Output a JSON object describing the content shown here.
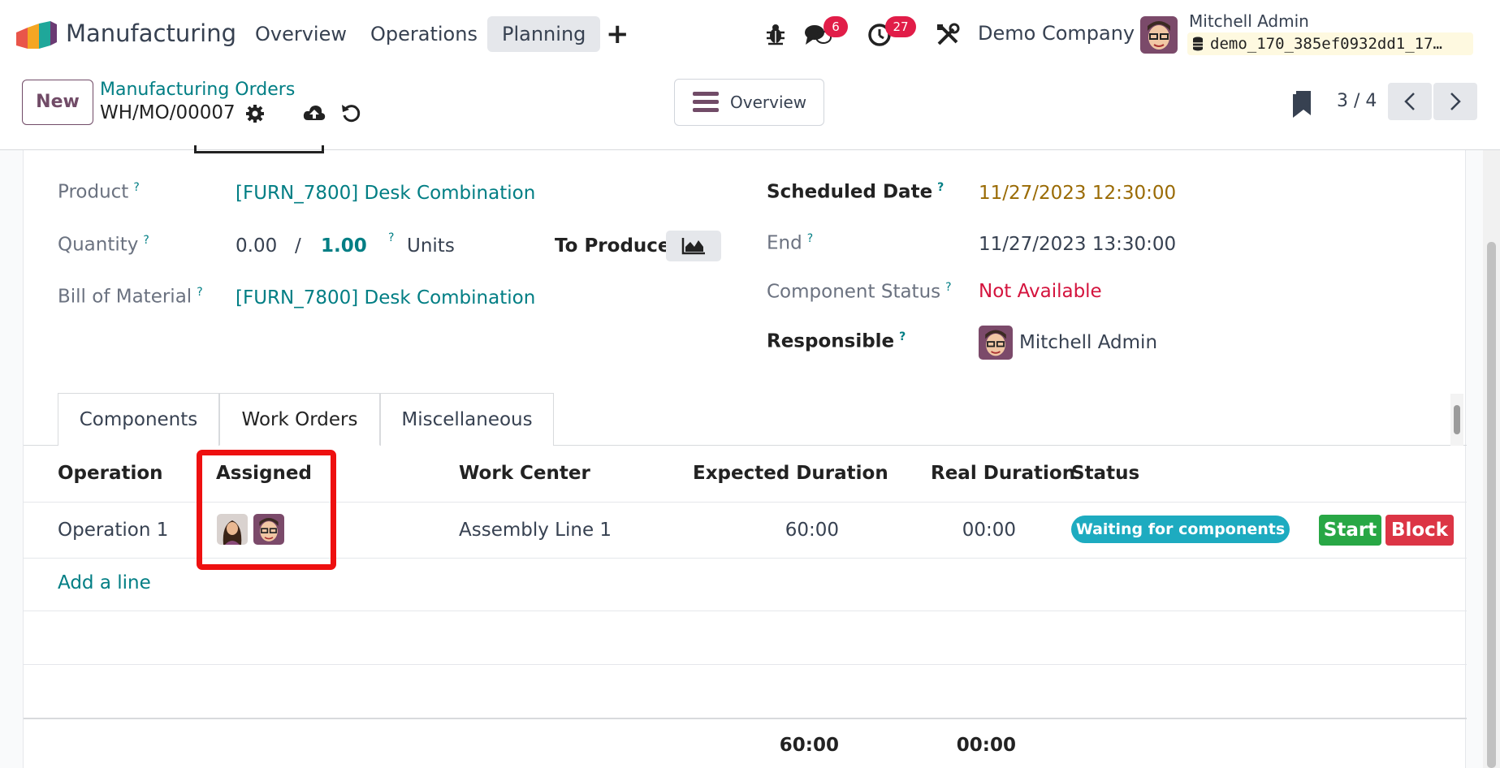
{
  "navbar": {
    "app_name": "Manufacturing",
    "menus": [
      {
        "label": "Overview"
      },
      {
        "label": "Operations"
      },
      {
        "label": "Planning",
        "active": true
      }
    ],
    "messages_count": "6",
    "activities_count": "27",
    "company": "Demo Company",
    "user_name": "Mitchell Admin",
    "database": "demo_170_385ef0932dd1_17…"
  },
  "control": {
    "new_label": "New",
    "breadcrumb": "Manufacturing Orders",
    "record_name": "WH/MO/00007",
    "overview_label": "Overview",
    "pager": "3 / 4"
  },
  "form": {
    "product_label": "Product",
    "product_value": "[FURN_7800] Desk Combination",
    "quantity_label": "Quantity",
    "quantity_produced": "0.00",
    "quantity_sep": "/",
    "quantity_total": "1.00",
    "quantity_uom": "Units",
    "to_produce_label": "To Produce",
    "bom_label": "Bill of Material",
    "bom_value": "[FURN_7800] Desk Combination",
    "scheduled_label": "Scheduled Date",
    "scheduled_value": "11/27/2023 12:30:00",
    "end_label": "End",
    "end_value": "11/27/2023 13:30:00",
    "component_status_label": "Component Status",
    "component_status_value": "Not Available",
    "responsible_label": "Responsible",
    "responsible_value": "Mitchell Admin",
    "help_mark": "?"
  },
  "tabs": [
    {
      "label": "Components"
    },
    {
      "label": "Work Orders",
      "active": true
    },
    {
      "label": "Miscellaneous"
    }
  ],
  "table": {
    "headers": {
      "operation": "Operation",
      "assigned": "Assigned",
      "work_center": "Work Center",
      "expected": "Expected Duration",
      "real": "Real Duration",
      "status": "Status"
    },
    "rows": [
      {
        "operation": "Operation 1",
        "work_center": "Assembly Line 1",
        "expected": "60:00",
        "real": "00:00",
        "status": "Waiting for components",
        "start_label": "Start",
        "block_label": "Block"
      }
    ],
    "add_line": "Add a line",
    "total_expected": "60:00",
    "total_real": "00:00"
  },
  "colors": {
    "brand": "#714b67",
    "link": "#017e84",
    "danger": "#d4133d",
    "status": "#1dabc0",
    "highlight": "#ee1010"
  }
}
